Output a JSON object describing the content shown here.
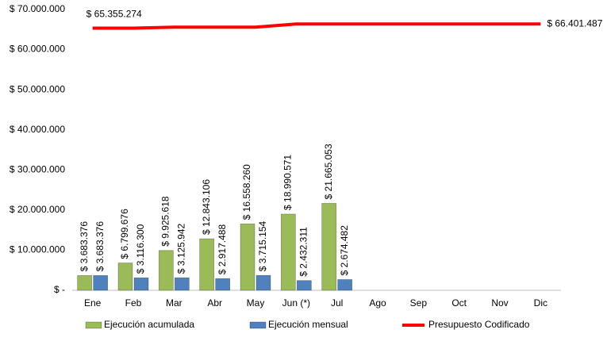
{
  "chart_data": {
    "type": "bar-line",
    "categories": [
      "Ene",
      "Feb",
      "Mar",
      "Abr",
      "May",
      "Jun (*)",
      "Jul",
      "Ago",
      "Sep",
      "Oct",
      "Nov",
      "Dic"
    ],
    "ylim": [
      0,
      70000000
    ],
    "yticks": [
      {
        "value": 0,
        "label": "$ -"
      },
      {
        "value": 10000000,
        "label": "$ 10.000.000"
      },
      {
        "value": 20000000,
        "label": "$ 20.000.000"
      },
      {
        "value": 30000000,
        "label": "$ 30.000.000"
      },
      {
        "value": 40000000,
        "label": "$ 40.000.000"
      },
      {
        "value": 50000000,
        "label": "$ 50.000.000"
      },
      {
        "value": 60000000,
        "label": "$ 60.000.000"
      },
      {
        "value": 70000000,
        "label": "$ 70.000.000"
      }
    ],
    "grid": false,
    "legend": "bottom",
    "series": [
      {
        "name": "Ejecución acumulada",
        "type": "bar",
        "color": "#9bbb59",
        "values": [
          3683376,
          6799676,
          9925618,
          12843106,
          16558260,
          18990571,
          21665053,
          null,
          null,
          null,
          null,
          null
        ],
        "value_labels": [
          "$ 3.683.376",
          "$ 6.799.676",
          "$ 9.925.618",
          "$ 12.843.106",
          "$ 16.558.260",
          "$ 18.990.571",
          "$ 21.665.053",
          null,
          null,
          null,
          null,
          null
        ]
      },
      {
        "name": "Ejecución mensual",
        "type": "bar",
        "color": "#4f81bd",
        "values": [
          3683376,
          3116300,
          3125942,
          2917488,
          3715154,
          2432311,
          2674482,
          null,
          null,
          null,
          null,
          null
        ],
        "value_labels": [
          "$ 3.683.376",
          "$ 3.116.300",
          "$ 3.125.942",
          "$ 2.917.488",
          "$ 3.715.154",
          "$ 2.432.311",
          "$ 2.674.482",
          null,
          null,
          null,
          null,
          null
        ]
      },
      {
        "name": "Presupuesto Codificado",
        "type": "line",
        "color": "#ff0000",
        "values": [
          65355274,
          65355274,
          65600000,
          65600000,
          65600000,
          66401487,
          66401487,
          66401487,
          66401487,
          66401487,
          66401487,
          66401487
        ],
        "value_labels": [
          "$ 65.355.274",
          null,
          null,
          null,
          null,
          null,
          null,
          null,
          null,
          null,
          null,
          "$ 66.401.487"
        ]
      }
    ]
  }
}
